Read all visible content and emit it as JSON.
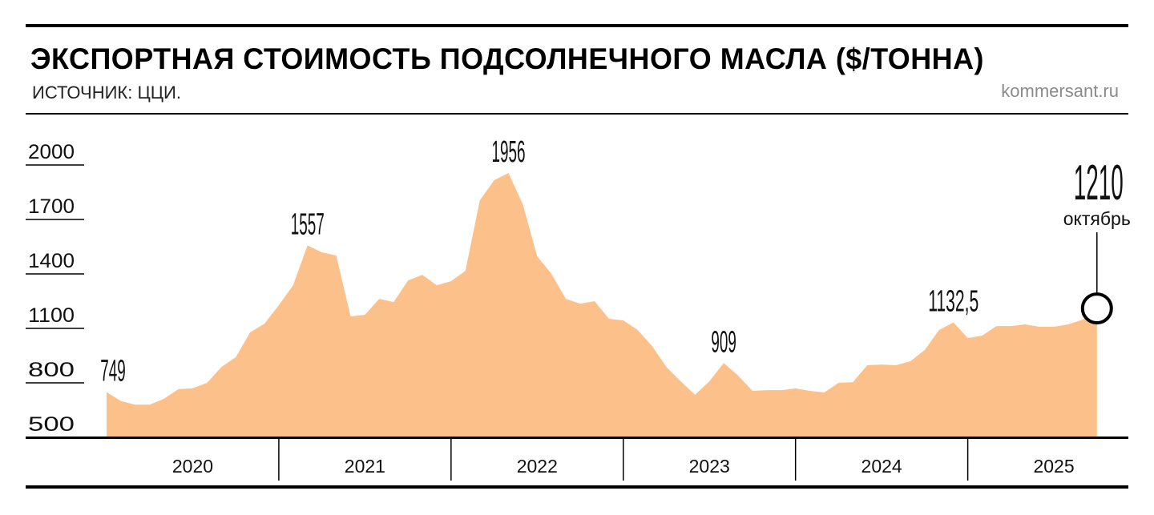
{
  "header": {
    "title": "ЭКСПОРТНАЯ СТОИМОСТЬ ПОДСОЛНЕЧНОГО МАСЛА ($/ТОННА)",
    "source": "ИСТОЧНИК: ЦЦИ.",
    "credit": "kommersant.ru"
  },
  "colors": {
    "fill": "#FCC08A",
    "text": "#111111"
  },
  "chart_data": {
    "type": "area",
    "title": "ЭКСПОРТНАЯ СТОИМОСТЬ ПОДСОЛНЕЧНОГО МАСЛА ($/ТОННА)",
    "xlabel": "",
    "ylabel": "$/тонна",
    "ylim": [
      500,
      2000
    ],
    "yticks": [
      "2000",
      "1700",
      "1400",
      "1100",
      "800",
      "500"
    ],
    "years": [
      "2020",
      "2021",
      "2022",
      "2023",
      "2024",
      "2025"
    ],
    "x_start": "2020-01",
    "x_step": "month",
    "values": [
      749,
      700,
      680,
      680,
      712,
      765,
      770,
      800,
      888,
      941,
      1078,
      1126,
      1228,
      1338,
      1557,
      1519,
      1501,
      1166,
      1175,
      1263,
      1245,
      1364,
      1395,
      1338,
      1360,
      1417,
      1805,
      1916,
      1956,
      1783,
      1497,
      1400,
      1263,
      1236,
      1250,
      1153,
      1144,
      1091,
      1003,
      888,
      809,
      734,
      809,
      909,
      840,
      756,
      760,
      760,
      769,
      756,
      747,
      800,
      804,
      897,
      901,
      897,
      919,
      981,
      1091,
      1132.5,
      1047,
      1060,
      1113,
      1113,
      1122,
      1109,
      1109,
      1122,
      1148,
      1210
    ],
    "annotations": [
      {
        "index": 0,
        "label": "749"
      },
      {
        "index": 14,
        "label": "1557"
      },
      {
        "index": 28,
        "label": "1956"
      },
      {
        "index": 43,
        "label": "909"
      },
      {
        "index": 59,
        "label": "1132,5"
      }
    ],
    "last": {
      "label": "1210",
      "sublabel": "октябрь"
    },
    "grid": false
  }
}
